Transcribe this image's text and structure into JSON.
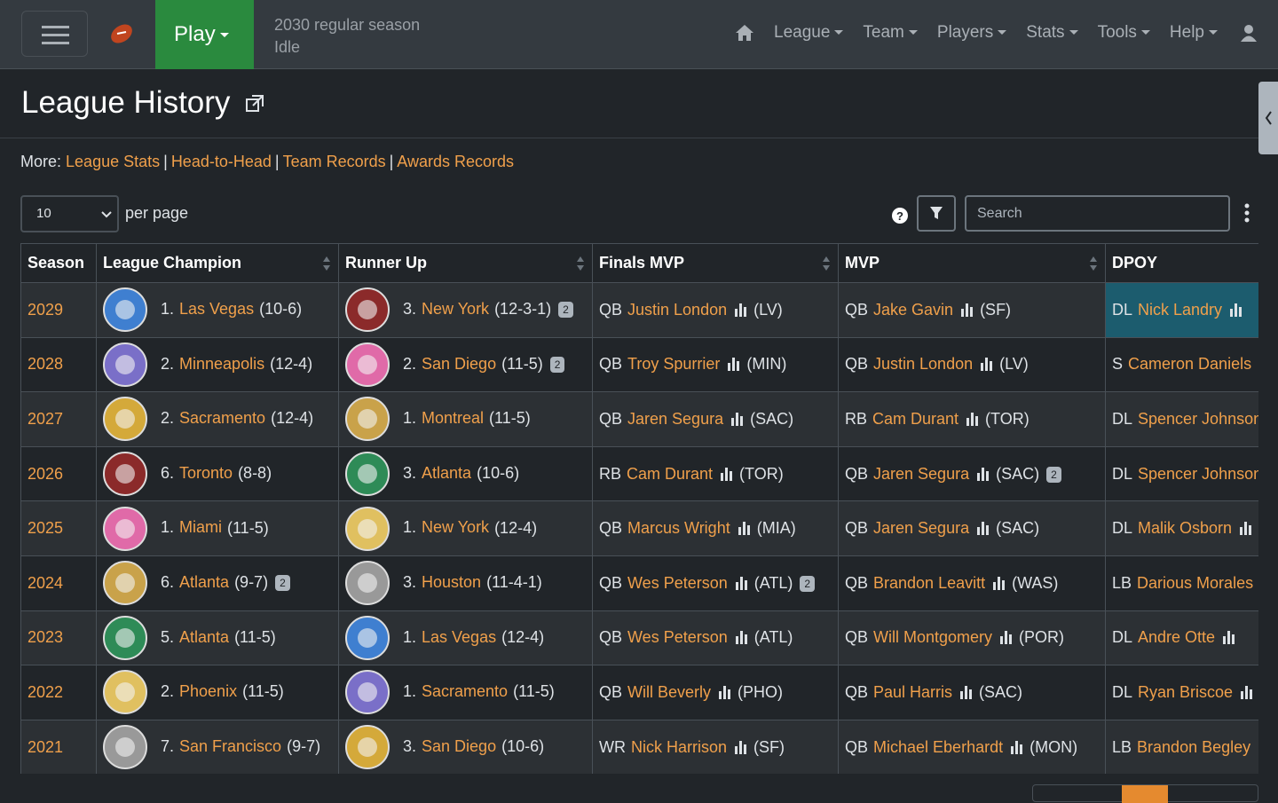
{
  "navbar": {
    "play": "Play",
    "season": "2030 regular season",
    "phase": "Idle",
    "menu": [
      "League",
      "Team",
      "Players",
      "Stats",
      "Tools",
      "Help"
    ]
  },
  "header": {
    "title": "League History"
  },
  "more": {
    "label": "More:",
    "links": [
      "League Stats",
      "Head-to-Head",
      "Team Records",
      "Awards Records"
    ]
  },
  "controls": {
    "per_page_value": "10",
    "per_page_label": "per page",
    "search_placeholder": "Search"
  },
  "table": {
    "columns": [
      "Season",
      "League Champion",
      "Runner Up",
      "Finals MVP",
      "MVP",
      "DPOY"
    ],
    "rows": [
      {
        "season": "2029",
        "champion": {
          "seed": "1.",
          "team": "Las Vegas",
          "record": "(10-6)"
        },
        "runner_up": {
          "seed": "3.",
          "team": "New York",
          "record": "(12-3-1)",
          "badge": "2"
        },
        "finals_mvp": {
          "pos": "QB",
          "name": "Justin London",
          "team": "(LV)"
        },
        "mvp": {
          "pos": "QB",
          "name": "Jake Gavin",
          "team": "(SF)"
        },
        "dpoy": {
          "pos": "DL",
          "name": "Nick Landry"
        }
      },
      {
        "season": "2028",
        "champion": {
          "seed": "2.",
          "team": "Minneapolis",
          "record": "(12-4)"
        },
        "runner_up": {
          "seed": "2.",
          "team": "San Diego",
          "record": "(11-5)",
          "badge": "2"
        },
        "finals_mvp": {
          "pos": "QB",
          "name": "Troy Spurrier",
          "team": "(MIN)"
        },
        "mvp": {
          "pos": "QB",
          "name": "Justin London",
          "team": "(LV)"
        },
        "dpoy": {
          "pos": "S",
          "name": "Cameron Daniels"
        }
      },
      {
        "season": "2027",
        "champion": {
          "seed": "2.",
          "team": "Sacramento",
          "record": "(12-4)"
        },
        "runner_up": {
          "seed": "1.",
          "team": "Montreal",
          "record": "(11-5)"
        },
        "finals_mvp": {
          "pos": "QB",
          "name": "Jaren Segura",
          "team": "(SAC)"
        },
        "mvp": {
          "pos": "RB",
          "name": "Cam Durant",
          "team": "(TOR)"
        },
        "dpoy": {
          "pos": "DL",
          "name": "Spencer Johnson"
        }
      },
      {
        "season": "2026",
        "champion": {
          "seed": "6.",
          "team": "Toronto",
          "record": "(8-8)"
        },
        "runner_up": {
          "seed": "3.",
          "team": "Atlanta",
          "record": "(10-6)"
        },
        "finals_mvp": {
          "pos": "RB",
          "name": "Cam Durant",
          "team": "(TOR)"
        },
        "mvp": {
          "pos": "QB",
          "name": "Jaren Segura",
          "team": "(SAC)",
          "badge": "2"
        },
        "dpoy": {
          "pos": "DL",
          "name": "Spencer Johnson"
        }
      },
      {
        "season": "2025",
        "champion": {
          "seed": "1.",
          "team": "Miami",
          "record": "(11-5)"
        },
        "runner_up": {
          "seed": "1.",
          "team": "New York",
          "record": "(12-4)"
        },
        "finals_mvp": {
          "pos": "QB",
          "name": "Marcus Wright",
          "team": "(MIA)"
        },
        "mvp": {
          "pos": "QB",
          "name": "Jaren Segura",
          "team": "(SAC)"
        },
        "dpoy": {
          "pos": "DL",
          "name": "Malik Osborn"
        }
      },
      {
        "season": "2024",
        "champion": {
          "seed": "6.",
          "team": "Atlanta",
          "record": "(9-7)",
          "badge": "2"
        },
        "runner_up": {
          "seed": "3.",
          "team": "Houston",
          "record": "(11-4-1)"
        },
        "finals_mvp": {
          "pos": "QB",
          "name": "Wes Peterson",
          "team": "(ATL)",
          "badge": "2"
        },
        "mvp": {
          "pos": "QB",
          "name": "Brandon Leavitt",
          "team": "(WAS)"
        },
        "dpoy": {
          "pos": "LB",
          "name": "Darious Morales"
        }
      },
      {
        "season": "2023",
        "champion": {
          "seed": "5.",
          "team": "Atlanta",
          "record": "(11-5)"
        },
        "runner_up": {
          "seed": "1.",
          "team": "Las Vegas",
          "record": "(12-4)"
        },
        "finals_mvp": {
          "pos": "QB",
          "name": "Wes Peterson",
          "team": "(ATL)"
        },
        "mvp": {
          "pos": "QB",
          "name": "Will Montgomery",
          "team": "(POR)"
        },
        "dpoy": {
          "pos": "DL",
          "name": "Andre Otte"
        }
      },
      {
        "season": "2022",
        "champion": {
          "seed": "2.",
          "team": "Phoenix",
          "record": "(11-5)"
        },
        "runner_up": {
          "seed": "1.",
          "team": "Sacramento",
          "record": "(11-5)"
        },
        "finals_mvp": {
          "pos": "QB",
          "name": "Will Beverly",
          "team": "(PHO)"
        },
        "mvp": {
          "pos": "QB",
          "name": "Paul Harris",
          "team": "(SAC)"
        },
        "dpoy": {
          "pos": "DL",
          "name": "Ryan Briscoe"
        }
      },
      {
        "season": "2021",
        "champion": {
          "seed": "7.",
          "team": "San Francisco",
          "record": "(9-7)"
        },
        "runner_up": {
          "seed": "3.",
          "team": "San Diego",
          "record": "(10-6)"
        },
        "finals_mvp": {
          "pos": "WR",
          "name": "Nick Harrison",
          "team": "(SF)"
        },
        "mvp": {
          "pos": "QB",
          "name": "Michael Eberhardt",
          "team": "(MON)"
        },
        "dpoy": {
          "pos": "LB",
          "name": "Brandon Begley"
        }
      }
    ]
  }
}
